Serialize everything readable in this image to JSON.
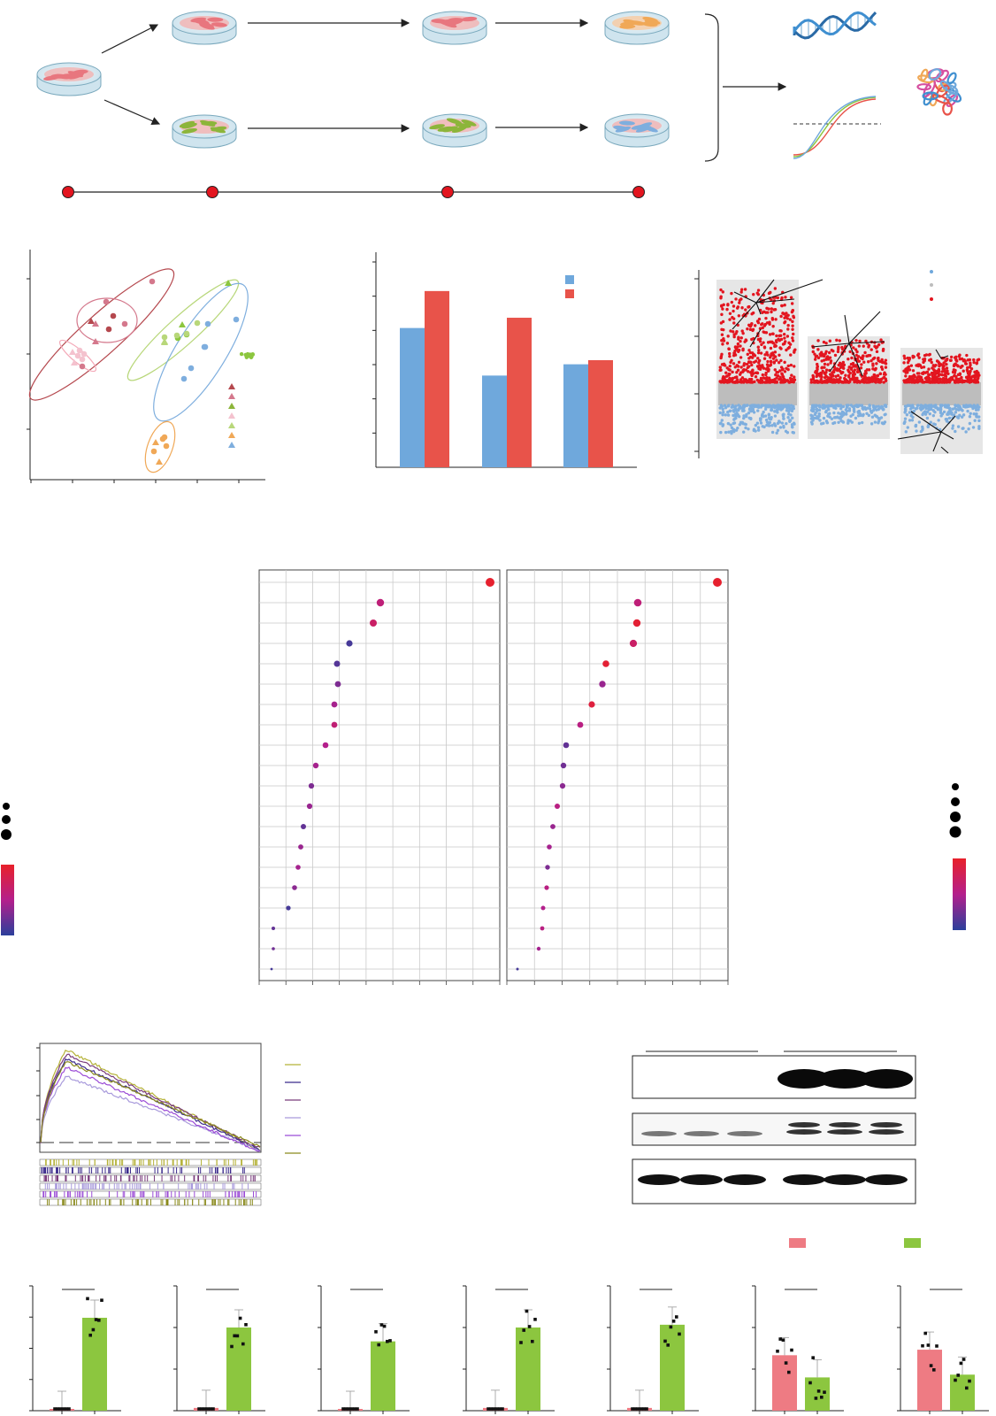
{
  "chart_data": [
    {
      "panel": "top-left",
      "type": "scatter",
      "title": "",
      "xlabel": "",
      "ylabel": "",
      "groups": [
        {
          "color": "#b5484e",
          "x": [
            73,
            90,
            85
          ],
          "y": [
            48,
            44,
            32
          ]
        },
        {
          "color": "#d4788c",
          "x": [
            64,
            67,
            70,
            75,
            80,
            85
          ],
          "y": [
            44,
            36,
            26,
            22,
            18,
            26
          ]
        },
        {
          "color": "#8cc63f",
          "x": [
            122,
            120,
            126,
            130
          ],
          "y": [
            49,
            42,
            38,
            51
          ]
        },
        {
          "color": "#f4c2ce",
          "x": [
            40,
            42,
            44,
            46,
            48,
            50
          ],
          "y": [
            75,
            73,
            76,
            74,
            77,
            75
          ]
        },
        {
          "color": "#b8d77a",
          "x": [
            178,
            182,
            186,
            200,
            185,
            188
          ],
          "y": [
            78,
            82,
            85,
            80,
            89,
            92
          ]
        },
        {
          "color": "#f0a857",
          "x": [
            135,
            140,
            145,
            150,
            142,
            148
          ],
          "y": [
            136,
            132,
            130,
            128,
            139,
            126
          ]
        },
        {
          "color": "#7eaede",
          "x": [
            210,
            220,
            230,
            228,
            240,
            250
          ],
          "y": [
            80,
            96,
            86,
            104,
            92,
            108
          ]
        }
      ]
    },
    {
      "panel": "top-middle",
      "type": "bar",
      "title": "",
      "xlabel": "",
      "ylabel": "",
      "ylim": [
        0,
        6
      ],
      "categories": [
        "",
        "",
        ""
      ],
      "series": [
        {
          "color": "#6fa8dc",
          "values": [
            4.07,
            2.68,
            3.01
          ]
        },
        {
          "color": "#e8534a",
          "values": [
            5.15,
            4.37,
            3.13
          ]
        }
      ]
    },
    {
      "panel": "bottom-row",
      "type": "bar",
      "title": "",
      "legend": [
        {
          "color": "#ee7b83"
        },
        {
          "color": "#8cc63f"
        }
      ],
      "charts": [
        {
          "values": [
            0.05,
            4.0
          ],
          "ylim": [
            0,
            4
          ],
          "colors": [
            "#ee7b83",
            "#8cc63f"
          ]
        },
        {
          "values": [
            0.1,
            3.0
          ],
          "ylim": [
            0,
            3
          ],
          "colors": [
            "#ee7b83",
            "#8cc63f"
          ]
        },
        {
          "values": [
            0.05,
            2.5
          ],
          "ylim": [
            0,
            3
          ],
          "colors": [
            "#ee7b83",
            "#8cc63f"
          ]
        },
        {
          "values": [
            0.1,
            3.0
          ],
          "ylim": [
            0,
            3
          ],
          "colors": [
            "#ee7b83",
            "#8cc63f"
          ]
        },
        {
          "values": [
            0.1,
            3.1
          ],
          "ylim": [
            0,
            3
          ],
          "colors": [
            "#ee7b83",
            "#8cc63f"
          ]
        },
        {
          "values": [
            2.0,
            1.2
          ],
          "ylim": [
            0,
            3
          ],
          "colors": [
            "#ee7b83",
            "#8cc63f"
          ]
        },
        {
          "values": [
            2.2,
            1.3
          ],
          "ylim": [
            0,
            3
          ],
          "colors": [
            "#ee7b83",
            "#8cc63f"
          ]
        }
      ]
    }
  ]
}
